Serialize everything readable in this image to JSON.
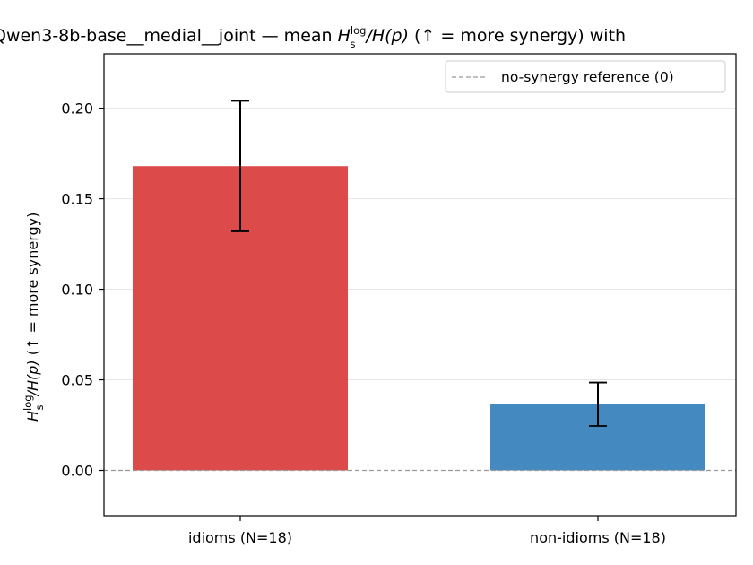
{
  "chart_data": {
    "type": "bar",
    "title_parts": {
      "prefix": "Qwen3-8b-base__medial__joint — mean ",
      "H": "H",
      "sub": "s",
      "sup": "log",
      "mid": "/H(p)",
      "suffix": "  (↑ = more synergy) with"
    },
    "ylabel_parts": {
      "H": "H",
      "sub": "s",
      "sup": "log",
      "mid": "/H(p)",
      "suffix": "  (↑ = more synergy)"
    },
    "categories": [
      "idioms (N=18)",
      "non-idioms (N=18)"
    ],
    "values": [
      0.168,
      0.0365
    ],
    "errors": [
      [
        0.132,
        0.204
      ],
      [
        0.0245,
        0.0485
      ]
    ],
    "colors": [
      "#dc4a4a",
      "#448ac0"
    ],
    "ylim": [
      -0.025,
      0.23
    ],
    "yticks": [
      "0.00",
      "0.05",
      "0.10",
      "0.15",
      "0.20"
    ],
    "reference": {
      "value": 0,
      "color": "#999999",
      "label": "no-synergy reference (0)"
    },
    "legend_position": "top-right",
    "grid": "horizontal"
  }
}
